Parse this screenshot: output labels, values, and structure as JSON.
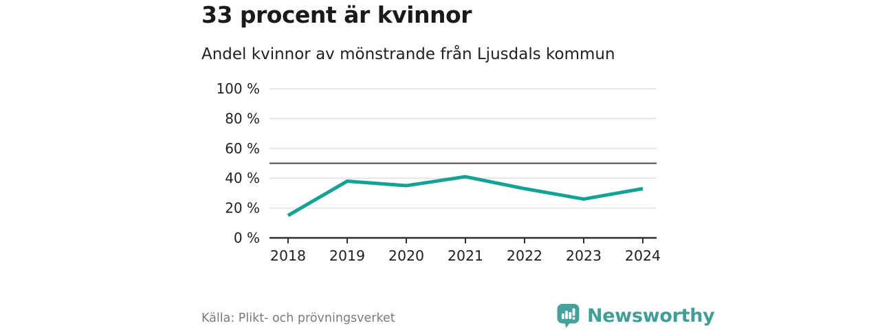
{
  "header": {
    "title": "33 procent är kvinnor",
    "subtitle": "Andel kvinnor av mönstrande från Ljusdals kommun"
  },
  "chart_data": {
    "type": "line",
    "title": "33 procent är kvinnor",
    "subtitle": "Andel kvinnor av mönstrande från Ljusdals kommun",
    "x": [
      "2018",
      "2019",
      "2020",
      "2021",
      "2022",
      "2023",
      "2024"
    ],
    "series": [
      {
        "name": "Andel kvinnor av mönstrande",
        "values": [
          15,
          38,
          35,
          41,
          33,
          26,
          33
        ]
      }
    ],
    "xlabel": "",
    "ylabel": "",
    "ylim": [
      0,
      100
    ],
    "yticks": [
      0,
      20,
      40,
      60,
      80,
      100
    ],
    "ytick_suffix": " %",
    "reference_line": 50,
    "grid": true,
    "legend": false
  },
  "footer": {
    "source": "Källa: Plikt- och prövningsverket",
    "logo_text": "Newsworthy"
  },
  "colors": {
    "line": "#12a296",
    "logo": "#3f9e98",
    "grid": "#e1e1e1",
    "reference": "#4a4a4a",
    "axis": "#2e2e2e",
    "tick_text": "#1f1f1f",
    "source_text": "#7a7a7a"
  }
}
